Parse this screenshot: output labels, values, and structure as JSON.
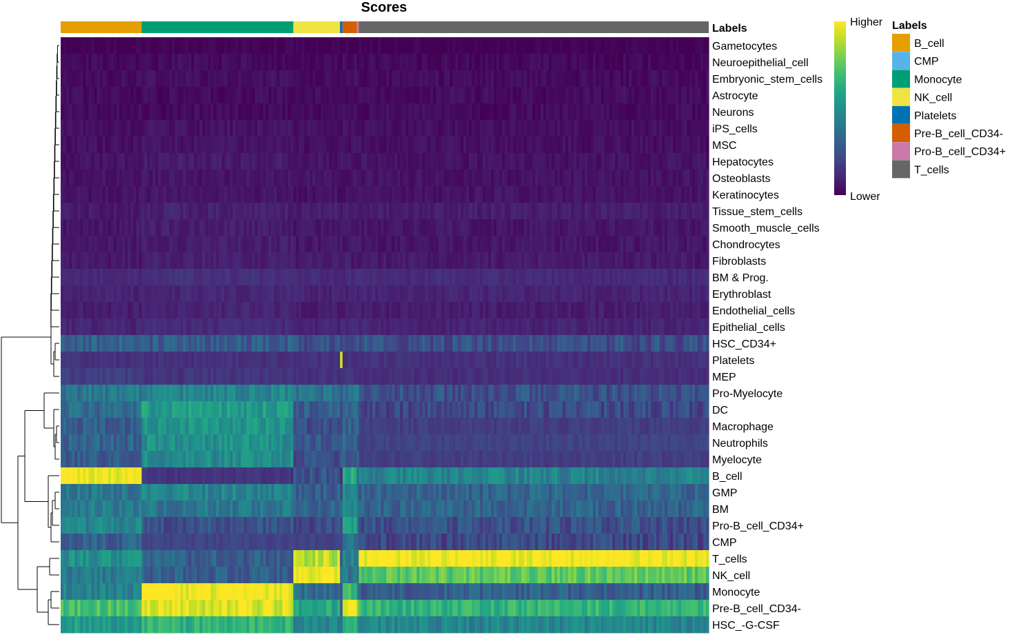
{
  "chart_data": {
    "type": "heatmap",
    "title": "Scores",
    "annotation_title": "Labels",
    "colorbar": {
      "high_label": "Higher",
      "low_label": "Lower"
    },
    "colormap": [
      "#440154",
      "#482475",
      "#414487",
      "#355f8d",
      "#2a788e",
      "#21908d",
      "#22a884",
      "#42be71",
      "#7ad151",
      "#bddf26",
      "#fde725"
    ],
    "labels_legend": [
      {
        "label": "B_cell",
        "color": "#E69F00"
      },
      {
        "label": "CMP",
        "color": "#56B4E9"
      },
      {
        "label": "Monocyte",
        "color": "#009E73"
      },
      {
        "label": "NK_cell",
        "color": "#F0E442"
      },
      {
        "label": "Platelets",
        "color": "#0072B2"
      },
      {
        "label": "Pre-B_cell_CD34-",
        "color": "#D55E00"
      },
      {
        "label": "Pro-B_cell_CD34+",
        "color": "#CC79A7"
      },
      {
        "label": "T_cells",
        "color": "#666666"
      }
    ],
    "column_groups": [
      {
        "label": "B_cell",
        "fraction": 0.125
      },
      {
        "label": "Monocyte",
        "fraction": 0.234
      },
      {
        "label": "NK_cell",
        "fraction": 0.072
      },
      {
        "label": "Platelets",
        "fraction": 0.004
      },
      {
        "label": "Pre-B_cell_CD34-",
        "fraction": 0.022
      },
      {
        "label": "Pro-B_cell_CD34+",
        "fraction": 0.003
      },
      {
        "label": "T_cells",
        "fraction": 0.54
      }
    ],
    "rows": [
      "Gametocytes",
      "Neuroepithelial_cell",
      "Embryonic_stem_cells",
      "Astrocyte",
      "Neurons",
      "iPS_cells",
      "MSC",
      "Hepatocytes",
      "Osteoblasts",
      "Keratinocytes",
      "Tissue_stem_cells",
      "Smooth_muscle_cells",
      "Chondrocytes",
      "Fibroblasts",
      "BM & Prog.",
      "Erythroblast",
      "Endothelial_cells",
      "Epithelial_cells",
      "HSC_CD34+",
      "Platelets",
      "MEP",
      "Pro-Myelocyte",
      "DC",
      "Macrophage",
      "Neutrophils",
      "Myelocyte",
      "B_cell",
      "GMP",
      "BM",
      "Pro-B_cell_CD34+",
      "CMP",
      "T_cells",
      "NK_cell",
      "Monocyte",
      "Pre-B_cell_CD34-",
      "HSC_-G-CSF"
    ],
    "values": [
      [
        0.0,
        0.0,
        0.0,
        0.0,
        0.0,
        0.0,
        0.0
      ],
      [
        0.02,
        0.03,
        0.02,
        0.02,
        0.03,
        0.02,
        0.02
      ],
      [
        0.03,
        0.04,
        0.03,
        0.03,
        0.04,
        0.03,
        0.03
      ],
      [
        0.03,
        0.03,
        0.03,
        0.03,
        0.03,
        0.03,
        0.03
      ],
      [
        0.03,
        0.03,
        0.03,
        0.03,
        0.03,
        0.03,
        0.03
      ],
      [
        0.04,
        0.05,
        0.04,
        0.04,
        0.04,
        0.04,
        0.04
      ],
      [
        0.04,
        0.05,
        0.04,
        0.04,
        0.04,
        0.04,
        0.04
      ],
      [
        0.05,
        0.07,
        0.05,
        0.05,
        0.05,
        0.05,
        0.05
      ],
      [
        0.05,
        0.06,
        0.05,
        0.05,
        0.05,
        0.05,
        0.05
      ],
      [
        0.05,
        0.06,
        0.05,
        0.05,
        0.05,
        0.05,
        0.05
      ],
      [
        0.07,
        0.09,
        0.08,
        0.08,
        0.08,
        0.08,
        0.08
      ],
      [
        0.06,
        0.08,
        0.06,
        0.06,
        0.06,
        0.06,
        0.06
      ],
      [
        0.06,
        0.08,
        0.06,
        0.06,
        0.06,
        0.06,
        0.06
      ],
      [
        0.07,
        0.09,
        0.07,
        0.07,
        0.07,
        0.07,
        0.07
      ],
      [
        0.12,
        0.14,
        0.12,
        0.12,
        0.12,
        0.12,
        0.12
      ],
      [
        0.1,
        0.11,
        0.1,
        0.1,
        0.1,
        0.1,
        0.1
      ],
      [
        0.08,
        0.1,
        0.08,
        0.08,
        0.08,
        0.08,
        0.08
      ],
      [
        0.1,
        0.12,
        0.1,
        0.1,
        0.1,
        0.1,
        0.1
      ],
      [
        0.3,
        0.28,
        0.25,
        0.28,
        0.26,
        0.25,
        0.24
      ],
      [
        0.14,
        0.14,
        0.14,
        1.0,
        0.14,
        0.14,
        0.14
      ],
      [
        0.18,
        0.15,
        0.14,
        0.15,
        0.16,
        0.15,
        0.13
      ],
      [
        0.4,
        0.45,
        0.38,
        0.3,
        0.4,
        0.38,
        0.25
      ],
      [
        0.35,
        0.55,
        0.3,
        0.28,
        0.35,
        0.35,
        0.22
      ],
      [
        0.3,
        0.52,
        0.25,
        0.25,
        0.3,
        0.3,
        0.18
      ],
      [
        0.32,
        0.5,
        0.28,
        0.25,
        0.32,
        0.32,
        0.2
      ],
      [
        0.28,
        0.48,
        0.25,
        0.22,
        0.3,
        0.3,
        0.18
      ],
      [
        1.0,
        0.15,
        0.25,
        0.15,
        0.6,
        0.4,
        0.45
      ],
      [
        0.4,
        0.45,
        0.3,
        0.3,
        0.45,
        0.4,
        0.32
      ],
      [
        0.42,
        0.4,
        0.32,
        0.3,
        0.5,
        0.4,
        0.32
      ],
      [
        0.45,
        0.25,
        0.22,
        0.2,
        0.55,
        0.45,
        0.25
      ],
      [
        0.3,
        0.2,
        0.2,
        0.2,
        0.4,
        0.3,
        0.22
      ],
      [
        0.5,
        0.3,
        0.9,
        0.3,
        0.45,
        0.4,
        1.0
      ],
      [
        0.4,
        0.3,
        1.0,
        0.3,
        0.4,
        0.35,
        0.75
      ],
      [
        0.45,
        1.0,
        0.35,
        0.3,
        0.7,
        0.5,
        0.3
      ],
      [
        0.7,
        0.95,
        0.6,
        0.3,
        1.0,
        0.8,
        0.65
      ],
      [
        0.55,
        0.65,
        0.45,
        0.35,
        0.6,
        0.55,
        0.45
      ]
    ]
  }
}
